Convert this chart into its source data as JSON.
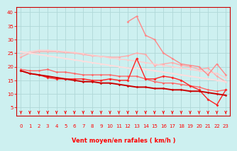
{
  "xlabel": "Vent moyen/en rafales ( km/h )",
  "bg_color": "#cdf0f0",
  "grid_color": "#b0d8d8",
  "xlim": [
    -0.5,
    23.5
  ],
  "ylim": [
    2,
    42
  ],
  "yticks": [
    5,
    10,
    15,
    20,
    25,
    30,
    35,
    40
  ],
  "xticks": [
    0,
    1,
    2,
    3,
    4,
    5,
    6,
    7,
    8,
    9,
    10,
    11,
    12,
    13,
    14,
    15,
    16,
    17,
    18,
    19,
    20,
    21,
    22,
    23
  ],
  "series": [
    {
      "comment": "light pink smooth decreasing - upper rafales band",
      "color": "#ffaaaa",
      "lw": 1.0,
      "marker": "D",
      "ms": 1.8,
      "y": [
        23.5,
        25.0,
        25.5,
        25.5,
        25.5,
        25.2,
        25.0,
        24.5,
        24.0,
        23.8,
        23.5,
        23.5,
        24.0,
        25.0,
        24.5,
        20.5,
        21.0,
        21.5,
        20.5,
        20.0,
        19.0,
        19.5,
        16.5,
        14.5
      ]
    },
    {
      "comment": "lighter pink smooth - second rafales band",
      "color": "#ffcccc",
      "lw": 1.0,
      "marker": "D",
      "ms": 1.8,
      "y": [
        24.5,
        25.5,
        26.0,
        26.0,
        25.8,
        25.5,
        25.2,
        24.8,
        24.2,
        23.8,
        23.2,
        22.8,
        22.5,
        22.0,
        21.5,
        21.0,
        20.5,
        20.0,
        19.5,
        19.0,
        18.5,
        18.0,
        17.5,
        16.0
      ]
    },
    {
      "comment": "very light pink - regression upper",
      "color": "#ffdddd",
      "lw": 1.3,
      "marker": "D",
      "ms": 1.5,
      "y": [
        25.5,
        25.0,
        24.5,
        24.0,
        23.5,
        23.0,
        22.5,
        22.0,
        21.5,
        21.0,
        20.5,
        20.0,
        19.5,
        19.5,
        19.0,
        18.5,
        18.0,
        17.5,
        17.0,
        16.5,
        16.0,
        15.5,
        15.0,
        14.5
      ]
    },
    {
      "comment": "medium red - moyen jagged",
      "color": "#ff6666",
      "lw": 1.0,
      "marker": "D",
      "ms": 1.8,
      "y": [
        19.0,
        18.5,
        18.5,
        19.0,
        18.0,
        18.0,
        17.5,
        17.0,
        17.0,
        17.0,
        17.0,
        16.5,
        16.5,
        16.5,
        15.5,
        14.5,
        14.0,
        14.0,
        13.5,
        13.0,
        12.5,
        11.5,
        11.0,
        11.5
      ]
    },
    {
      "comment": "bright red - moyen jagged with spike",
      "color": "#ff2222",
      "lw": 1.0,
      "marker": "D",
      "ms": 2.0,
      "y": [
        18.5,
        17.5,
        17.0,
        16.0,
        15.5,
        15.5,
        15.5,
        15.5,
        15.0,
        15.0,
        15.5,
        15.0,
        15.0,
        23.0,
        15.5,
        15.5,
        16.5,
        16.0,
        15.0,
        13.0,
        11.5,
        8.0,
        6.0,
        11.5
      ]
    },
    {
      "comment": "dark red - regression lower moyen",
      "color": "#cc0000",
      "lw": 1.4,
      "marker": "D",
      "ms": 1.8,
      "y": [
        18.5,
        17.5,
        17.0,
        16.5,
        16.0,
        15.5,
        15.0,
        14.5,
        14.5,
        14.0,
        14.0,
        13.5,
        13.0,
        12.5,
        12.5,
        12.0,
        12.0,
        11.5,
        11.5,
        11.0,
        11.0,
        10.5,
        10.0,
        9.5
      ]
    },
    {
      "comment": "salmon - high gust series starting from x=12, peak at 13-14",
      "color": "#ff8888",
      "lw": 1.0,
      "marker": "D",
      "ms": 1.8,
      "y": [
        null,
        null,
        null,
        null,
        null,
        null,
        null,
        null,
        null,
        null,
        null,
        null,
        36.5,
        38.5,
        31.5,
        30.0,
        25.0,
        23.0,
        21.0,
        20.5,
        20.0,
        17.0,
        21.0,
        17.0
      ]
    }
  ],
  "tick_color": "#ff0000",
  "label_color": "#ff0000",
  "axis_color": "#cc0000"
}
